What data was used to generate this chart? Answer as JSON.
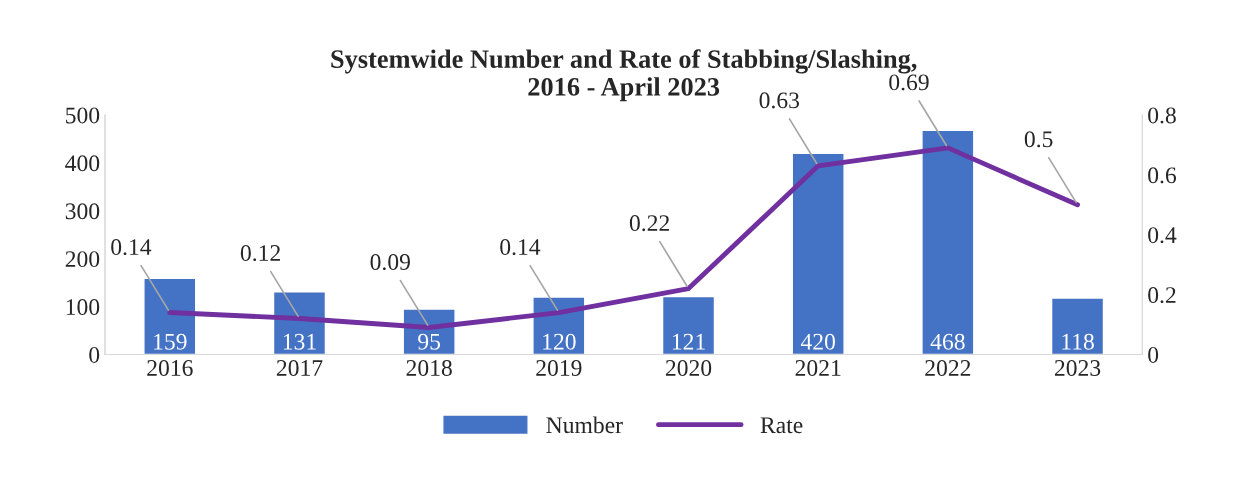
{
  "chart_data": {
    "type": "bar",
    "title": "Systemwide Number and Rate of Stabbing/Slashing,\n2016 - April 2023",
    "categories": [
      "2016",
      "2017",
      "2018",
      "2019",
      "2020",
      "2021",
      "2022",
      "2023"
    ],
    "series": [
      {
        "name": "Number",
        "color": "#4472c4",
        "values": [
          159,
          131,
          95,
          120,
          121,
          420,
          468,
          118
        ]
      },
      {
        "name": "Rate",
        "type": "line",
        "axis": "y2",
        "color": "#7030a0",
        "values": [
          0.14,
          0.12,
          0.09,
          0.14,
          0.22,
          0.63,
          0.69,
          0.5
        ]
      }
    ],
    "ylim": [
      0,
      500
    ],
    "yticks": [
      0,
      100,
      200,
      300,
      400,
      500
    ],
    "y2lim": [
      0,
      0.8
    ],
    "y2ticks": [
      0,
      0.2,
      0.4,
      0.6,
      0.8
    ],
    "data_labels": true,
    "legend": "bottom",
    "grid": false,
    "marker": "none",
    "line_style": "solid"
  }
}
